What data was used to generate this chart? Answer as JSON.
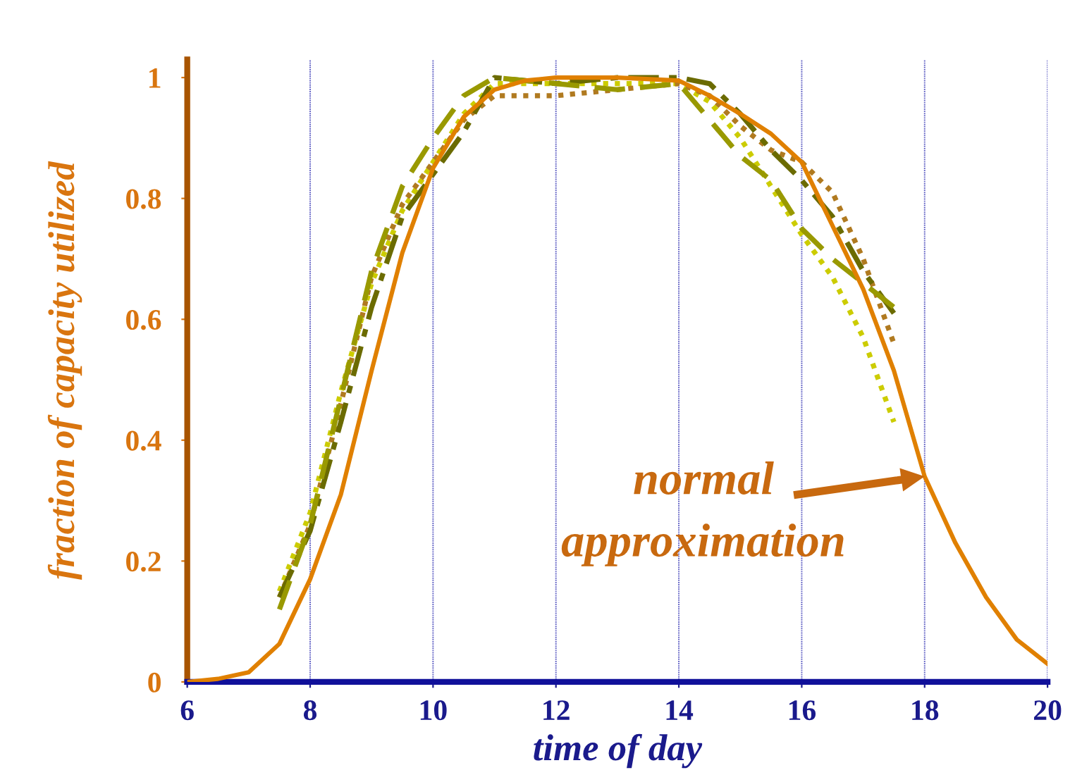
{
  "chart_data": {
    "type": "line",
    "xlabel": "time of day",
    "ylabel": "fraction of capacity utilized",
    "xlim": [
      6,
      20
    ],
    "ylim": [
      0,
      1.03
    ],
    "xticks": [
      6,
      8,
      10,
      12,
      14,
      16,
      18,
      20
    ],
    "yticks": [
      0,
      0.2,
      0.4,
      0.6,
      0.8,
      1
    ],
    "grid": "x",
    "marker": "none",
    "annotations": [
      {
        "text": "normal\napproximation",
        "x": 18,
        "y": 0.34
      }
    ],
    "series": [
      {
        "color": "#e08000",
        "line_style": "solid",
        "x": [
          6,
          6.5,
          7,
          7.5,
          8,
          8.5,
          9,
          9.5,
          10,
          10.5,
          11,
          11.5,
          12,
          13,
          14,
          14.5,
          15,
          15.5,
          16,
          16.5,
          17,
          17.5,
          18,
          18.5,
          19,
          19.5,
          20
        ],
        "values": [
          0,
          0.005,
          0.016,
          0.063,
          0.17,
          0.31,
          0.515,
          0.71,
          0.85,
          0.935,
          0.98,
          0.995,
          1,
          1,
          0.995,
          0.97,
          0.94,
          0.907,
          0.86,
          0.755,
          0.65,
          0.515,
          0.34,
          0.23,
          0.14,
          0.07,
          0.03
        ]
      },
      {
        "color": "#cccc00",
        "line_style": "dotted",
        "x": [
          7.5,
          8,
          8.5,
          9,
          9.5,
          10,
          10.5,
          11,
          12,
          13,
          14,
          14.5,
          15,
          15.5,
          16,
          16.5,
          17,
          17.5
        ],
        "values": [
          0.15,
          0.28,
          0.48,
          0.66,
          0.78,
          0.86,
          0.94,
          0.99,
          0.99,
          0.99,
          0.99,
          0.96,
          0.9,
          0.82,
          0.74,
          0.67,
          0.57,
          0.43
        ]
      },
      {
        "color": "#b07a20",
        "line_style": "dotted",
        "x": [
          7.5,
          8,
          8.5,
          9,
          9.5,
          10,
          10.5,
          11,
          12,
          13,
          14,
          14.5,
          15,
          15.5,
          16,
          16.5,
          17,
          17.5
        ],
        "values": [
          0.14,
          0.26,
          0.46,
          0.67,
          0.79,
          0.86,
          0.93,
          0.97,
          0.97,
          0.98,
          0.99,
          0.97,
          0.92,
          0.88,
          0.86,
          0.81,
          0.7,
          0.56
        ]
      },
      {
        "color": "#6b6b00",
        "line_style": "dashdot",
        "x": [
          7.5,
          8,
          8.5,
          9,
          9.5,
          10,
          10.5,
          11,
          12,
          13,
          14,
          14.5,
          15,
          15.5,
          16,
          16.5,
          17,
          17.5
        ],
        "values": [
          0.14,
          0.25,
          0.43,
          0.62,
          0.77,
          0.84,
          0.91,
          1,
          0.99,
          1,
          1,
          0.99,
          0.94,
          0.88,
          0.83,
          0.77,
          0.68,
          0.61
        ]
      },
      {
        "color": "#999900",
        "line_style": "dashed",
        "x": [
          7.5,
          8,
          8.5,
          9,
          9.5,
          10,
          10.5,
          11,
          12,
          13,
          14,
          14.5,
          15,
          15.5,
          16,
          16.5,
          17,
          17.5
        ],
        "values": [
          0.12,
          0.26,
          0.47,
          0.68,
          0.82,
          0.9,
          0.97,
          1,
          0.99,
          0.98,
          0.99,
          0.93,
          0.87,
          0.83,
          0.75,
          0.7,
          0.66,
          0.62
        ]
      }
    ]
  }
}
